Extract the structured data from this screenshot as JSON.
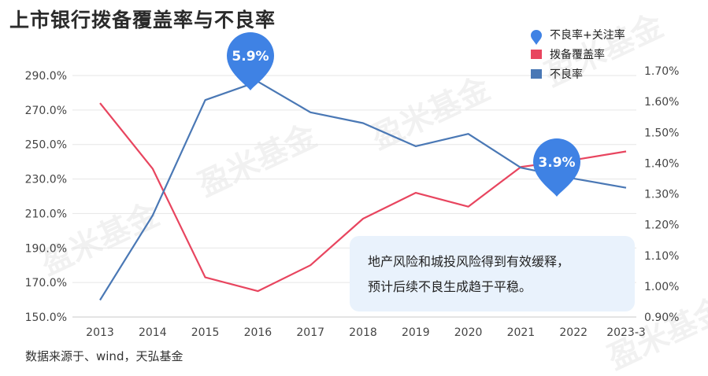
{
  "page": {
    "title": "上市银行拨备覆盖率与不良率",
    "source": "数据来源于、wind，天弘基金",
    "watermark": "盈米基金"
  },
  "chart_data": {
    "type": "line",
    "title": "上市银行拨备覆盖率与不良率",
    "categories": [
      "2013",
      "2014",
      "2015",
      "2016",
      "2017",
      "2018",
      "2019",
      "2020",
      "2021",
      "2022",
      "2023-3"
    ],
    "y_left": {
      "ticks": [
        "150.0%",
        "170.0%",
        "190.0%",
        "210.0%",
        "230.0%",
        "250.0%",
        "270.0%",
        "290.0%"
      ],
      "range": [
        150,
        290
      ]
    },
    "y_right": {
      "ticks": [
        "0.90%",
        "1.00%",
        "1.10%",
        "1.20%",
        "1.30%",
        "1.40%",
        "1.50%",
        "1.60%",
        "1.70%"
      ],
      "range": [
        0.9,
        1.7
      ]
    },
    "grid": true,
    "legend_position": "top-right",
    "series": [
      {
        "name": "拨备覆盖率",
        "axis": "left",
        "color": "#e8455f",
        "values": [
          274,
          236,
          173,
          165,
          180,
          207,
          222,
          214,
          237,
          241,
          246
        ]
      },
      {
        "name": "不良率",
        "axis": "right",
        "color": "#4a78b5",
        "values": [
          0.955,
          1.23,
          1.605,
          1.665,
          1.565,
          1.53,
          1.455,
          1.495,
          1.385,
          1.35,
          1.32
        ]
      }
    ],
    "legend": [
      {
        "label": "不良率+关注率",
        "marker": "pin",
        "color": "#3f82e4"
      },
      {
        "label": "拨备覆盖率",
        "marker": "square",
        "color": "#e8455f"
      },
      {
        "label": "不良率",
        "marker": "square",
        "color": "#4a78b5"
      }
    ],
    "callouts": [
      {
        "text": "5.9%",
        "category": "2016",
        "color": "#3f82e4"
      },
      {
        "text": "3.9%",
        "category": "2022",
        "color": "#3f82e4"
      }
    ],
    "note": {
      "lines": [
        "地产风险和城投风险得到有效缓释，",
        "预计后续不良生成趋于平稳。"
      ],
      "background": "#e9f2fc"
    }
  }
}
